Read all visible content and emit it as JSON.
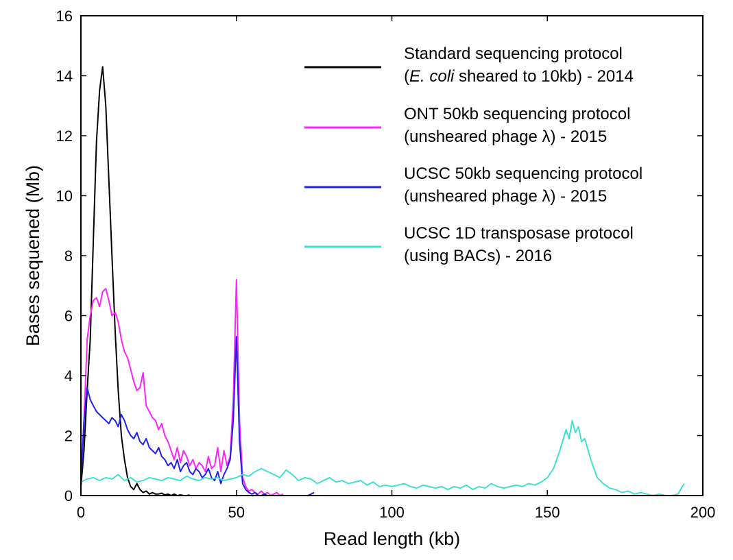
{
  "chart_data": {
    "type": "line",
    "title": "",
    "xlabel": "Read length (kb)",
    "ylabel": "Bases sequened (Mb)",
    "xlim": [
      0,
      200
    ],
    "ylim": [
      0,
      16
    ],
    "xticks": [
      0,
      50,
      100,
      150,
      200
    ],
    "yticks": [
      0,
      2,
      4,
      6,
      8,
      10,
      12,
      14,
      16
    ],
    "grid": false,
    "legend_position": "top-right",
    "series": [
      {
        "name": "Standard sequencing protocol (E. coli sheared to 10kb) - 2014",
        "legend_lines": [
          [
            {
              "t": "Standard sequencing protocol",
              "i": false
            }
          ],
          [
            {
              "t": "(",
              "i": false
            },
            {
              "t": "E. coli",
              "i": true
            },
            {
              "t": " sheared to 10kb) - 2014",
              "i": false
            }
          ]
        ],
        "color": "#000000",
        "x": [
          0,
          1,
          2,
          3,
          4,
          5,
          6,
          7,
          8,
          9,
          10,
          11,
          12,
          13,
          14,
          15,
          16,
          17,
          18,
          19,
          20,
          21,
          22,
          23,
          24,
          25,
          26,
          27,
          28,
          29,
          30,
          31,
          32,
          33,
          34,
          35
        ],
        "y": [
          0.3,
          1.5,
          3.5,
          5.2,
          8.5,
          11.8,
          13.5,
          14.3,
          13.0,
          10.5,
          8.0,
          5.5,
          3.5,
          2.0,
          1.2,
          0.6,
          0.3,
          0.2,
          0.4,
          0.2,
          0.1,
          0.15,
          0.05,
          0.1,
          0.05,
          0.05,
          0.08,
          0.02,
          0.05,
          0.0,
          0.05,
          0.0,
          0.02,
          0.0,
          0.0,
          0.02
        ]
      },
      {
        "name": "ONT 50kb sequencing protocol (unsheared phage λ) - 2015",
        "legend_lines": [
          [
            {
              "t": "ONT 50kb sequencing protocol",
              "i": false
            }
          ],
          [
            {
              "t": "(unsheared phage λ) - 2015",
              "i": false
            }
          ]
        ],
        "color": "#ff22ff",
        "x": [
          0,
          1,
          2,
          3,
          4,
          5,
          6,
          7,
          8,
          9,
          10,
          11,
          12,
          13,
          14,
          15,
          16,
          17,
          18,
          19,
          20,
          21,
          22,
          23,
          24,
          25,
          26,
          27,
          28,
          29,
          30,
          31,
          32,
          33,
          34,
          35,
          36,
          37,
          38,
          39,
          40,
          41,
          42,
          43,
          44,
          45,
          46,
          47,
          48,
          49,
          50,
          51,
          52,
          53,
          54,
          55,
          56,
          57,
          58,
          59,
          60,
          61,
          62,
          63,
          64,
          65
        ],
        "y": [
          0.5,
          2.5,
          5.2,
          6.0,
          6.5,
          6.6,
          6.3,
          6.8,
          6.9,
          6.5,
          6.0,
          6.1,
          5.8,
          5.2,
          4.8,
          4.6,
          4.2,
          3.8,
          3.5,
          3.6,
          4.1,
          3.0,
          2.8,
          2.6,
          2.5,
          2.2,
          2.4,
          2.0,
          1.8,
          1.5,
          1.2,
          1.6,
          1.1,
          1.5,
          1.3,
          1.0,
          1.2,
          0.9,
          1.1,
          1.0,
          0.8,
          1.3,
          0.9,
          1.0,
          1.6,
          0.8,
          1.5,
          1.0,
          1.3,
          3.2,
          7.2,
          2.5,
          0.6,
          0.3,
          0.15,
          0.2,
          0.1,
          0.05,
          0.15,
          0.05,
          0.1,
          0.0,
          0.05,
          0.1,
          0.0,
          0.05
        ]
      },
      {
        "name": "UCSC 50kb sequencing protocol (unsheared phage λ) - 2015",
        "legend_lines": [
          [
            {
              "t": "UCSC 50kb sequencing protocol",
              "i": false
            }
          ],
          [
            {
              "t": "(unsheared phage λ) - 2015",
              "i": false
            }
          ]
        ],
        "color": "#1f1fee",
        "x": [
          0,
          1,
          2,
          3,
          4,
          5,
          6,
          7,
          8,
          9,
          10,
          11,
          12,
          13,
          14,
          15,
          16,
          17,
          18,
          19,
          20,
          21,
          22,
          23,
          24,
          25,
          26,
          27,
          28,
          29,
          30,
          31,
          32,
          33,
          34,
          35,
          36,
          37,
          38,
          39,
          40,
          41,
          42,
          43,
          44,
          45,
          46,
          47,
          48,
          49,
          50,
          51,
          52,
          53,
          54,
          55,
          56,
          57,
          58,
          59,
          60,
          61,
          62,
          63,
          64,
          65,
          66,
          67,
          68,
          69,
          70,
          71,
          72,
          73,
          74,
          75
        ],
        "y": [
          0.4,
          2.5,
          3.6,
          3.2,
          3.0,
          2.8,
          2.7,
          2.6,
          2.5,
          2.4,
          2.6,
          2.5,
          2.3,
          2.7,
          2.5,
          2.2,
          2.0,
          1.9,
          2.1,
          1.8,
          1.7,
          1.9,
          1.6,
          1.5,
          1.4,
          1.6,
          1.3,
          1.2,
          1.0,
          1.1,
          0.9,
          1.2,
          0.8,
          1.0,
          1.1,
          0.8,
          0.7,
          0.9,
          0.8,
          0.6,
          0.7,
          0.9,
          0.6,
          0.5,
          0.8,
          0.4,
          0.7,
          0.9,
          1.2,
          2.5,
          5.3,
          1.8,
          0.4,
          0.2,
          0.1,
          0.05,
          0.1,
          0.0,
          0.0,
          0.05,
          0.0,
          0.0,
          0.0,
          0.0,
          0.0,
          0.0,
          0.0,
          0.0,
          0.0,
          0.0,
          0.0,
          0.0,
          0.0,
          0.0,
          0.05,
          0.1
        ]
      },
      {
        "name": "UCSC 1D transposase protocol (using BACs) - 2016",
        "legend_lines": [
          [
            {
              "t": "UCSC 1D transposase protocol",
              "i": false
            }
          ],
          [
            {
              "t": "(using BACs) - 2016",
              "i": false
            }
          ]
        ],
        "color": "#40e0d0",
        "x": [
          0,
          2,
          4,
          6,
          8,
          10,
          12,
          14,
          16,
          18,
          20,
          22,
          24,
          26,
          28,
          30,
          32,
          34,
          36,
          38,
          40,
          42,
          44,
          46,
          48,
          50,
          52,
          54,
          56,
          58,
          60,
          62,
          64,
          66,
          68,
          70,
          72,
          74,
          76,
          78,
          80,
          82,
          84,
          86,
          88,
          90,
          92,
          94,
          96,
          98,
          100,
          102,
          104,
          106,
          108,
          110,
          112,
          114,
          116,
          118,
          120,
          122,
          124,
          126,
          128,
          130,
          132,
          134,
          136,
          138,
          140,
          142,
          144,
          146,
          148,
          150,
          152,
          154,
          156,
          157,
          158,
          159,
          160,
          161,
          162,
          164,
          166,
          168,
          170,
          172,
          174,
          176,
          178,
          180,
          182,
          184,
          186,
          188,
          190,
          192,
          194
        ],
        "y": [
          0.45,
          0.55,
          0.6,
          0.5,
          0.6,
          0.55,
          0.7,
          0.5,
          0.6,
          0.45,
          0.5,
          0.6,
          0.55,
          0.5,
          0.6,
          0.55,
          0.5,
          0.65,
          0.55,
          0.5,
          0.6,
          0.55,
          0.6,
          0.5,
          0.55,
          0.6,
          0.7,
          0.65,
          0.8,
          0.9,
          0.8,
          0.7,
          0.6,
          0.85,
          0.7,
          0.5,
          0.6,
          0.55,
          0.4,
          0.5,
          0.6,
          0.45,
          0.5,
          0.4,
          0.45,
          0.5,
          0.35,
          0.45,
          0.3,
          0.35,
          0.3,
          0.35,
          0.4,
          0.3,
          0.25,
          0.35,
          0.3,
          0.25,
          0.3,
          0.2,
          0.3,
          0.25,
          0.35,
          0.2,
          0.3,
          0.25,
          0.4,
          0.3,
          0.25,
          0.3,
          0.35,
          0.3,
          0.4,
          0.35,
          0.45,
          0.6,
          0.9,
          1.5,
          2.2,
          1.9,
          2.5,
          2.1,
          2.3,
          1.8,
          1.9,
          1.2,
          0.6,
          0.4,
          0.25,
          0.2,
          0.1,
          0.15,
          0.05,
          0.1,
          0.05,
          0.0,
          0.05,
          0.0,
          0.0,
          0.05,
          0.4
        ]
      }
    ]
  }
}
